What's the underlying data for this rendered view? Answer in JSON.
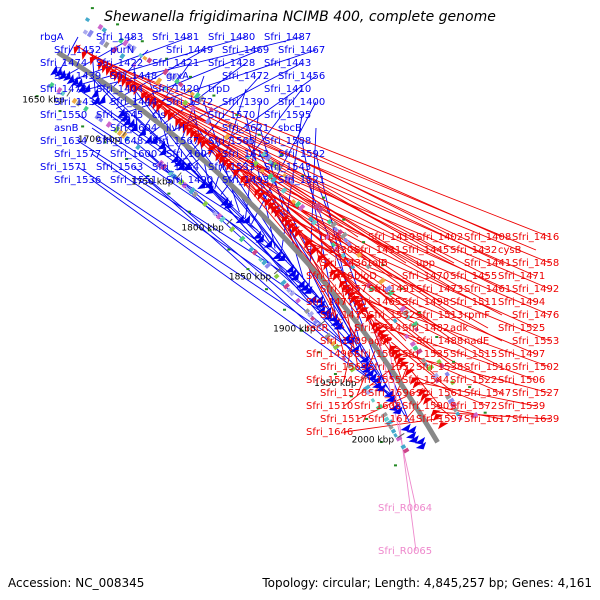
{
  "title": "Shewanella frigidimarina NCIMB 400, complete genome",
  "footer": {
    "accession": "Accession: NC_008345",
    "summary": "Topology: circular; Length: 4,845,257 bp; Genes: 4,161"
  },
  "colors": {
    "forward_gene": "#0000ee",
    "reverse_gene": "#ee0000",
    "rna_gene": "#ee88cc",
    "backbone": "#888888",
    "tick": "#228822"
  },
  "ticks": [
    "1650 kbp",
    "1700 kbp",
    "1750 kbp",
    "1800 kbp",
    "1850 kbp",
    "1900 kbp",
    "1950 kbp",
    "2000 kbp"
  ],
  "blue_labels": [
    "rbgA",
    "Sfri_1483",
    "Sfri_1481",
    "Sfri_1480",
    "Sfri_1487",
    "Sfri_1452",
    "purN",
    "Sfri_1449",
    "Sfri_1469",
    "Sfri_1467",
    "Sfri_1474",
    "Sfri_1422",
    "Sfri_1421",
    "Sfri_1428",
    "Sfri_1443",
    "Sfri_1439",
    "Sfri_1448",
    "grxA",
    "Sfri_1472",
    "Sfri_1456",
    "Sfri_1479",
    "Sfri_1404",
    "Sfri_1420",
    "trpD",
    "Sfri_1410",
    "Sfri_1434",
    "Sfri_1444",
    "Sfri_1372",
    "Sfri_1390",
    "Sfri_1400",
    "Sfri_1550",
    "Sfri_1545",
    "cls",
    "Sfri_1570",
    "Sfri_1595",
    "asnB",
    "Sfri_1604",
    "ilvH",
    "Sfri_1621",
    "sbcB",
    "Sfri_1634",
    "Sfri_1648",
    "Sfri_1567",
    "Sfri_1565",
    "Sfri_1588",
    "Sfri_1577",
    "Sfri_1600",
    "Sfri_1607",
    "Sfri_1613",
    "Sfri_1592",
    "Sfri_1571",
    "Sfri_1563",
    "Sfri_1534",
    "Sfri_1533",
    "Sfri_1543",
    "Sfri_1536",
    "Sfri_1551",
    "Sfri_1490",
    "Sfri_1493",
    "Sfri_1521"
  ],
  "red_labels": [
    "truA",
    "Sfri_1419",
    "Sfri_1402",
    "Sfri_1408",
    "Sfri_1416",
    "Sfri_1430",
    "Sfri_1431",
    "Sfri_1445",
    "Sfri_1432",
    "cysB",
    "Sfri_1436",
    "tolB",
    "upp",
    "Sfri_1441",
    "Sfri_1458",
    "Sfri_1446",
    "bioD",
    "Sfri_1470",
    "Sfri_1455",
    "Sfri_1471",
    "Sfri_1457",
    "Sfri_1491",
    "Sfri_1473",
    "Sfri_1461",
    "Sfri_1492",
    "Sfri_1477",
    "Sfri_1465",
    "Sfri_1498",
    "Sfri_1511",
    "Sfri_1494",
    "Sfri_1475",
    "Sfri_1532",
    "Sfri_1513",
    "rpmF",
    "Sfri_1476",
    "recR",
    "Sfri_1514",
    "Sfri_1482",
    "adk",
    "Sfri_1525",
    "Sfri_1509",
    "acpP",
    "Sfri_1488",
    "nadE",
    "Sfri_1553",
    "Sfri_1496",
    "Sfri_1564",
    "Sfri_1535",
    "Sfri_1515",
    "Sfri_1497",
    "Sfri_1569",
    "Sfri_1552",
    "Sfri_1538",
    "Sfri_1516",
    "Sfri_1502",
    "Sfri_1574",
    "Sfri_1555",
    "Sfri_1544",
    "Sfri_1522",
    "Sfri_1506",
    "Sfri_1578",
    "Sfri_1596",
    "Sfri_1561",
    "Sfri_1547",
    "Sfri_1527",
    "Sfri_1510",
    "Sfri_1608",
    "Sfri_1590",
    "Sfri_1572",
    "Sfri_1539",
    "Sfri_1517",
    "Sfri_1614",
    "Sfri_1597",
    "Sfri_1617",
    "Sfri_1639",
    "Sfri_1646"
  ],
  "pink_labels": [
    "Sfri_R0064",
    "Sfri_R0065"
  ]
}
